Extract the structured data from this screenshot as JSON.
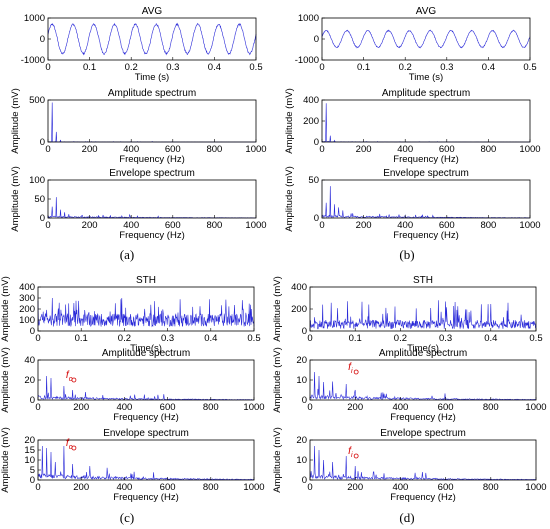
{
  "panel_labels": [
    "(a)",
    "(b)",
    "(c)",
    "(d)"
  ],
  "chart_data": [
    {
      "type": "line",
      "panel": "a",
      "title": "AVG",
      "xlabel": "Time (s)",
      "ylabel": "",
      "xlim": [
        0,
        0.5
      ],
      "ylim": [
        -1000,
        1000
      ],
      "xticks": [
        "0",
        "0.1",
        "0.2",
        "0.3",
        "0.4",
        "0.5"
      ],
      "yticks": [
        "-1000",
        "0",
        "1000"
      ],
      "series": [
        {
          "kind": "sine",
          "frequency": 20,
          "amplitude": 700
        }
      ],
      "grid": false
    },
    {
      "type": "line",
      "panel": "a",
      "title": "Amplitude spectrum",
      "xlabel": "Frequency (Hz)",
      "ylabel": "Amplitude (mV)",
      "xlim": [
        0,
        1000
      ],
      "ylim": [
        0,
        500
      ],
      "xticks": [
        "0",
        "200",
        "400",
        "600",
        "800",
        "1000"
      ],
      "yticks": [
        "0",
        "500"
      ],
      "peaks": [
        [
          20,
          470
        ],
        [
          40,
          120
        ],
        [
          60,
          25
        ]
      ],
      "noise": 3,
      "grid": false
    },
    {
      "type": "line",
      "panel": "a",
      "title": "Envelope spectrum",
      "xlabel": "Frequency (Hz)",
      "ylabel": "Amplitude (mV)",
      "xlim": [
        0,
        1000
      ],
      "ylim": [
        0,
        100
      ],
      "xticks": [
        "0",
        "200",
        "400",
        "600",
        "800",
        "1000"
      ],
      "yticks": [
        "0",
        "50",
        "100"
      ],
      "peaks": [
        [
          20,
          30
        ],
        [
          40,
          55
        ],
        [
          60,
          22
        ],
        [
          80,
          15
        ],
        [
          100,
          10
        ]
      ],
      "noise": 4,
      "grid": false
    },
    {
      "type": "line",
      "panel": "b",
      "title": "AVG",
      "xlabel": "Time (s)",
      "ylabel": "",
      "xlim": [
        0,
        0.5
      ],
      "ylim": [
        -1000,
        1000
      ],
      "xticks": [
        "0",
        "0.1",
        "0.2",
        "0.3",
        "0.4",
        "0.5"
      ],
      "yticks": [
        "-1000",
        "0",
        "1000"
      ],
      "series": [
        {
          "kind": "sine",
          "frequency": 20,
          "amplitude": 400
        }
      ],
      "grid": false
    },
    {
      "type": "line",
      "panel": "b",
      "title": "Amplitude spectrum",
      "xlabel": "Frequency (Hz)",
      "ylabel": "Amplitude (mV)",
      "xlim": [
        0,
        1000
      ],
      "ylim": [
        0,
        400
      ],
      "xticks": [
        "0",
        "200",
        "400",
        "600",
        "800",
        "1000"
      ],
      "yticks": [
        "0",
        "200",
        "400"
      ],
      "peaks": [
        [
          20,
          370
        ],
        [
          40,
          60
        ],
        [
          60,
          15
        ]
      ],
      "noise": 3,
      "grid": false
    },
    {
      "type": "line",
      "panel": "b",
      "title": "Envelope spectrum",
      "xlabel": "Frequency (Hz)",
      "ylabel": "Amplitude (mV)",
      "xlim": [
        0,
        1000
      ],
      "ylim": [
        0,
        50
      ],
      "xticks": [
        "0",
        "200",
        "400",
        "600",
        "800",
        "1000"
      ],
      "yticks": [
        "0",
        "50"
      ],
      "peaks": [
        [
          20,
          20
        ],
        [
          40,
          42
        ],
        [
          60,
          18
        ],
        [
          80,
          14
        ],
        [
          100,
          10
        ],
        [
          140,
          6
        ]
      ],
      "noise": 3,
      "grid": false
    },
    {
      "type": "line",
      "panel": "c",
      "title": "STH",
      "xlabel": "Time(s)",
      "ylabel": "Amplitude (mV)",
      "xlim": [
        0,
        0.5
      ],
      "ylim": [
        0,
        400
      ],
      "xticks": [
        "0",
        "0.1",
        "0.2",
        "0.3",
        "0.4",
        "0.5"
      ],
      "yticks": [
        "0",
        "100",
        "200",
        "300",
        "400"
      ],
      "series": [
        {
          "kind": "impulsive",
          "baseline": 100,
          "spread": 60,
          "max": 300
        }
      ],
      "grid": false
    },
    {
      "type": "line",
      "panel": "c",
      "title": "Amplitude spectrum",
      "xlabel": "Frequency (Hz)",
      "ylabel": "Amplitude (mV)",
      "xlim": [
        0,
        1000
      ],
      "ylim": [
        0,
        40
      ],
      "xticks": [
        "0",
        "200",
        "400",
        "600",
        "800",
        "1000"
      ],
      "yticks": [
        "0",
        "20",
        "40"
      ],
      "peaks": [
        [
          40,
          24
        ],
        [
          60,
          22
        ],
        [
          120,
          14
        ],
        [
          160,
          10
        ],
        [
          220,
          8
        ],
        [
          300,
          5
        ]
      ],
      "noise": 3,
      "annotation": {
        "text": "f",
        "subscript": "o",
        "x": 120,
        "y": 20,
        "color": "#d40000"
      },
      "grid": false
    },
    {
      "type": "line",
      "panel": "c",
      "title": "Envelope spectrum",
      "xlabel": "Frequency (Hz)",
      "ylabel": "Amplitude (mV)",
      "xlim": [
        0,
        1000
      ],
      "ylim": [
        0,
        20
      ],
      "xticks": [
        "0",
        "200",
        "400",
        "600",
        "800",
        "1000"
      ],
      "yticks": [
        "0",
        "5",
        "10",
        "15",
        "20"
      ],
      "peaks": [
        [
          20,
          17
        ],
        [
          40,
          16
        ],
        [
          60,
          14
        ],
        [
          80,
          9
        ],
        [
          120,
          17
        ],
        [
          160,
          8
        ],
        [
          240,
          7
        ],
        [
          320,
          5
        ]
      ],
      "noise": 2.5,
      "annotation": {
        "text": "f",
        "subscript": "o",
        "x": 120,
        "y": 16,
        "color": "#d40000"
      },
      "grid": false
    },
    {
      "type": "line",
      "panel": "d",
      "title": "STH",
      "xlabel": "Time(s)",
      "ylabel": "Amplitude (mV)",
      "xlim": [
        0,
        0.5
      ],
      "ylim": [
        0,
        400
      ],
      "xticks": [
        "0",
        "0.1",
        "0.2",
        "0.3",
        "0.4",
        "0.5"
      ],
      "yticks": [
        "0",
        "200",
        "400"
      ],
      "series": [
        {
          "kind": "impulsive",
          "baseline": 60,
          "spread": 40,
          "max": 280
        }
      ],
      "grid": false
    },
    {
      "type": "line",
      "panel": "d",
      "title": "Amplitude spectrum",
      "xlabel": "Frequency (Hz)",
      "ylabel": "Amplitude (mV)",
      "xlim": [
        0,
        1000
      ],
      "ylim": [
        0,
        20
      ],
      "xticks": [
        "0",
        "200",
        "400",
        "600",
        "800",
        "1000"
      ],
      "yticks": [
        "0",
        "10",
        "20"
      ],
      "peaks": [
        [
          20,
          14
        ],
        [
          40,
          12
        ],
        [
          60,
          9
        ],
        [
          100,
          7
        ],
        [
          160,
          8
        ],
        [
          200,
          5
        ]
      ],
      "noise": 2,
      "annotation": {
        "text": "f",
        "subscript": "i",
        "x": 160,
        "y": 14,
        "color": "#d40000"
      },
      "grid": false
    },
    {
      "type": "line",
      "panel": "d",
      "title": "Envelope spectrum",
      "xlabel": "Frequency (Hz)",
      "ylabel": "Amplitude (mV)",
      "xlim": [
        0,
        1000
      ],
      "ylim": [
        0,
        20
      ],
      "xticks": [
        "0",
        "200",
        "400",
        "600",
        "800",
        "1000"
      ],
      "yticks": [
        "0",
        "10",
        "20"
      ],
      "peaks": [
        [
          20,
          17
        ],
        [
          40,
          15
        ],
        [
          60,
          10
        ],
        [
          100,
          9
        ],
        [
          160,
          12
        ],
        [
          200,
          7
        ],
        [
          280,
          4
        ]
      ],
      "noise": 2,
      "annotation": {
        "text": "f",
        "subscript": "i",
        "x": 160,
        "y": 12,
        "color": "#d40000"
      },
      "grid": false
    }
  ]
}
